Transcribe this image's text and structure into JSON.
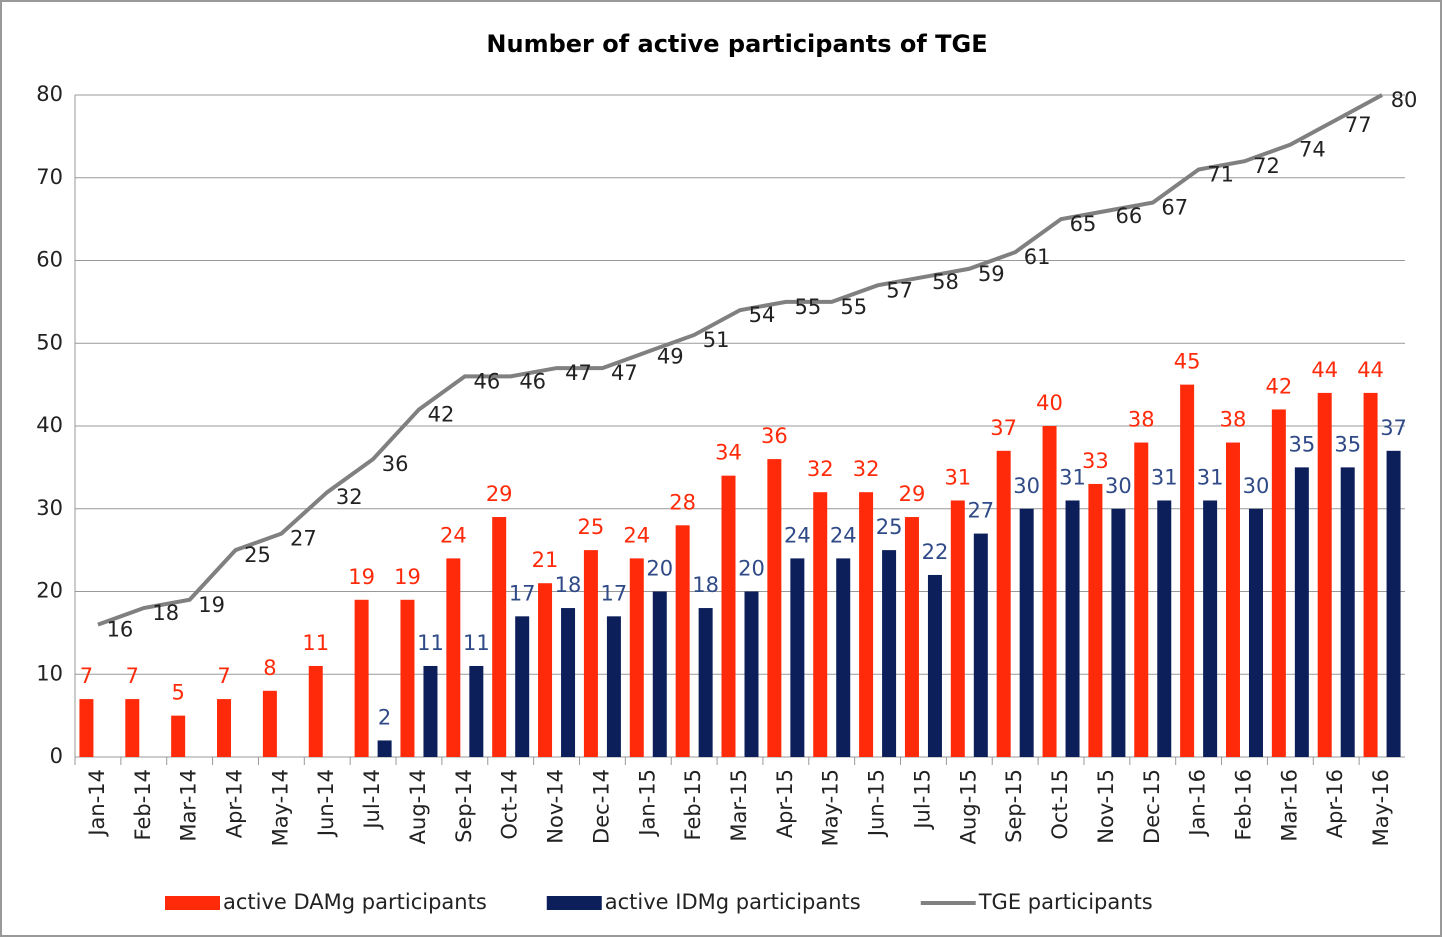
{
  "chart_data": {
    "type": "bar_line",
    "title": "Number of active participants of TGE",
    "categories": [
      "Jan-14",
      "Feb-14",
      "Mar-14",
      "Apr-14",
      "May-14",
      "Jun-14",
      "Jul-14",
      "Aug-14",
      "Sep-14",
      "Oct-14",
      "Nov-14",
      "Dec-14",
      "Jan-15",
      "Feb-15",
      "Mar-15",
      "Apr-15",
      "May-15",
      "Jun-15",
      "Jul-15",
      "Aug-15",
      "Sep-15",
      "Oct-15",
      "Nov-15",
      "Dec-15",
      "Jan-16",
      "Feb-16",
      "Mar-16",
      "Apr-16",
      "May-16"
    ],
    "series": [
      {
        "name": "active DAMg participants",
        "color": "#ff2a0a",
        "kind": "bar",
        "label_color": "#ff2a0a",
        "values": [
          7,
          7,
          5,
          7,
          8,
          11,
          19,
          19,
          24,
          29,
          21,
          25,
          24,
          28,
          34,
          36,
          32,
          32,
          29,
          31,
          37,
          40,
          33,
          38,
          45,
          38,
          42,
          44,
          44
        ]
      },
      {
        "name": "active IDMg participants",
        "color": "#0d1f5a",
        "kind": "bar",
        "label_color": "#2f4a86",
        "values": [
          null,
          null,
          null,
          null,
          null,
          null,
          2,
          11,
          11,
          17,
          18,
          17,
          20,
          18,
          20,
          24,
          24,
          25,
          22,
          27,
          30,
          31,
          30,
          31,
          31,
          30,
          35,
          35,
          37
        ]
      },
      {
        "name": "TGE participants",
        "color": "#808080",
        "kind": "line",
        "label_color": "#222222",
        "values": [
          16,
          18,
          19,
          25,
          27,
          32,
          36,
          42,
          46,
          46,
          47,
          47,
          49,
          51,
          54,
          55,
          55,
          57,
          58,
          59,
          61,
          65,
          66,
          67,
          71,
          72,
          74,
          77,
          80
        ]
      }
    ],
    "ylim": [
      0,
      80
    ],
    "yticks": [
      0,
      10,
      20,
      30,
      40,
      50,
      60,
      70,
      80
    ],
    "grid": true,
    "legend": "bottom"
  }
}
